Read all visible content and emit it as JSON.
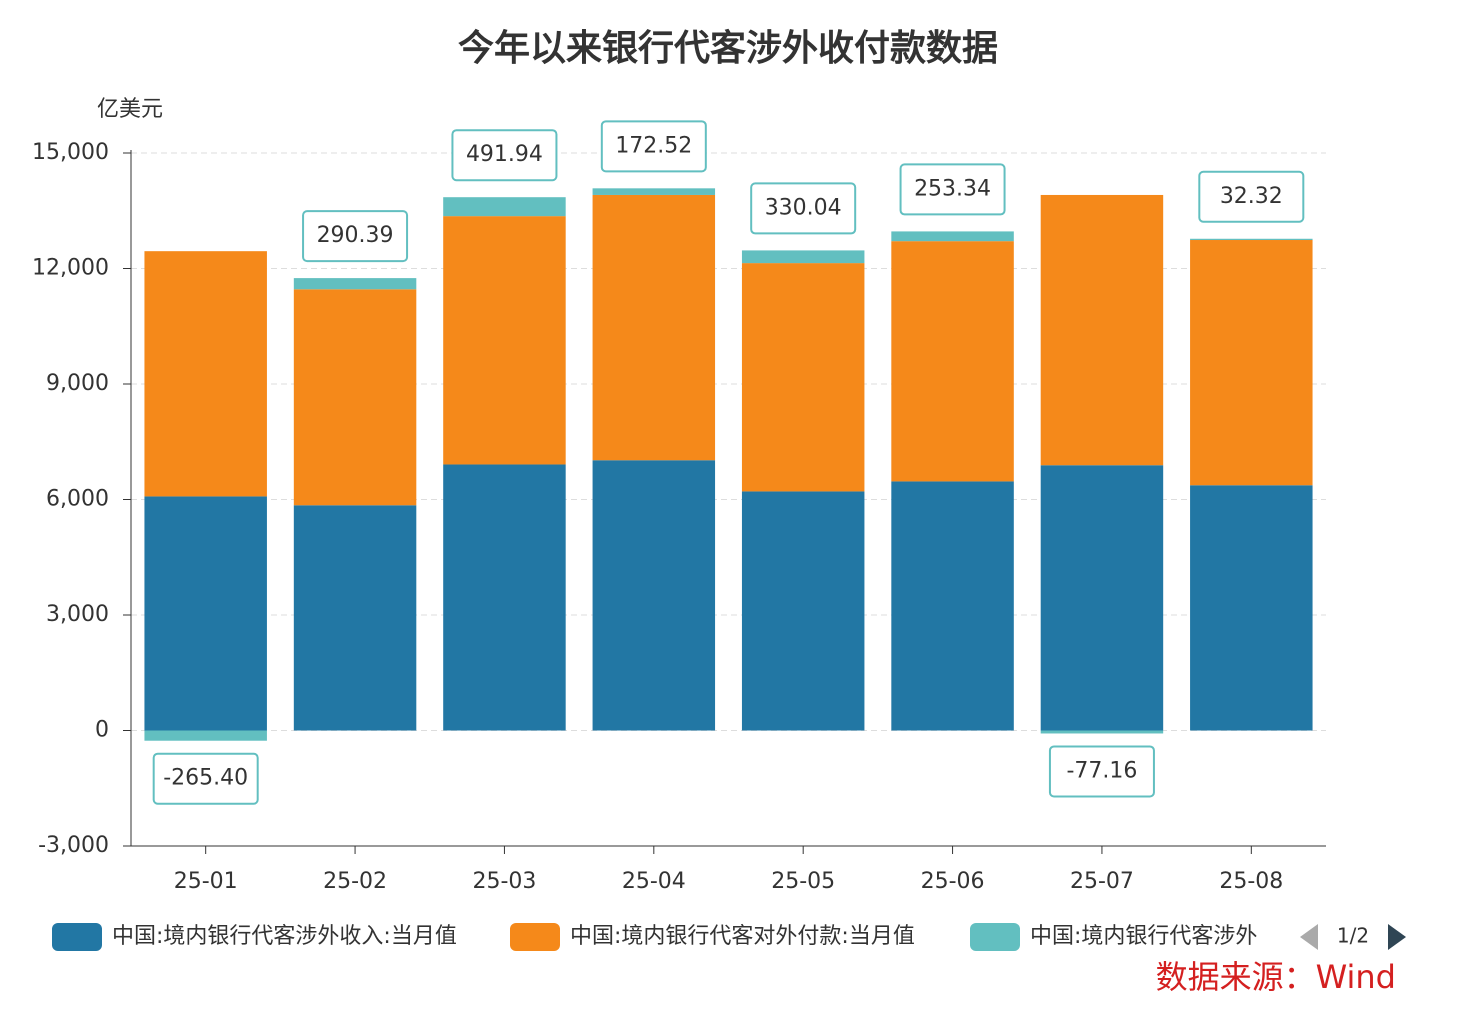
{
  "chart_data": {
    "type": "stacked_bar",
    "title": "今年以来银行代客涉外收付款数据",
    "y_label": "亿美元",
    "source": "数据来源：Wind",
    "legend_page": "1/2",
    "categories": [
      "25-01",
      "25-02",
      "25-03",
      "25-04",
      "25-05",
      "25-06",
      "25-07",
      "25-08"
    ],
    "series": [
      {
        "name": "中国:境内银行代客涉外收入:当月值",
        "color": "#2277a4",
        "values": [
          6080,
          5850,
          6910,
          7020,
          6210,
          6470,
          6890,
          6370
        ]
      },
      {
        "name": "中国:境内银行代客对外付款:当月值",
        "color": "#f5891a",
        "values": [
          6370,
          5610,
          6450,
          6890,
          5930,
          6240,
          7020,
          6370
        ]
      },
      {
        "name": "中国:境内银行代客涉外",
        "color": "#62bfc0",
        "values": [
          -265.4,
          290.39,
          491.94,
          172.52,
          330.04,
          253.34,
          -77.16,
          32.32
        ],
        "value_labels": [
          "-265.40",
          "290.39",
          "491.94",
          "172.52",
          "330.04",
          "253.34",
          "-77.16",
          "32.32"
        ]
      }
    ],
    "ylim": [
      -3000,
      15000
    ],
    "yticks": [
      {
        "value": -3000,
        "label": "-3,000"
      },
      0,
      {
        "value": 3000,
        "label": "3,000"
      },
      {
        "value": 6000,
        "label": "6,000"
      },
      {
        "value": 9000,
        "label": "9,000"
      },
      {
        "value": 12000,
        "label": "12,000"
      },
      {
        "value": 15000,
        "label": "15,000"
      }
    ],
    "grid": true
  }
}
